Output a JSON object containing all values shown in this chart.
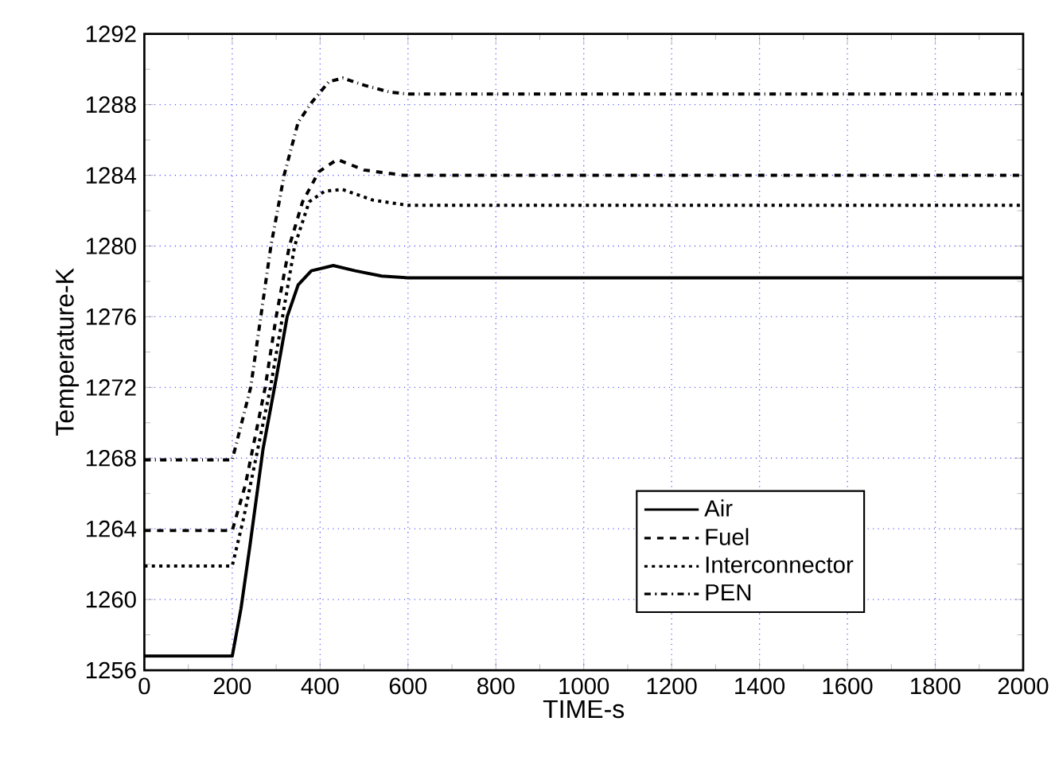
{
  "chart_data": {
    "type": "line",
    "xlabel": "TIME-s",
    "ylabel": "Temperature-K",
    "xlim": [
      0,
      2000
    ],
    "ylim": [
      1256,
      1292
    ],
    "xticks": [
      0,
      200,
      400,
      600,
      800,
      1000,
      1200,
      1400,
      1600,
      1800,
      2000
    ],
    "yticks": [
      1256,
      1260,
      1264,
      1268,
      1272,
      1276,
      1280,
      1284,
      1288,
      1292
    ],
    "grid": true,
    "legend": "bottom right",
    "series": [
      {
        "name": "Air",
        "color": "#000000",
        "line_style": "solid",
        "x": [
          0,
          200,
          220,
          240,
          270,
          300,
          325,
          350,
          380,
          430,
          480,
          540,
          600,
          2000
        ],
        "values": [
          1256.8,
          1256.8,
          1259.5,
          1263,
          1268.5,
          1272.5,
          1276,
          1277.8,
          1278.6,
          1278.9,
          1278.6,
          1278.3,
          1278.2,
          1278.2
        ]
      },
      {
        "name": "Fuel",
        "color": "#000000",
        "line_style": "dashed",
        "x": [
          0,
          200,
          230,
          275,
          300,
          330,
          360,
          397,
          439,
          500,
          590,
          2000
        ],
        "values": [
          1263.9,
          1263.9,
          1266.5,
          1272,
          1276,
          1280,
          1282.5,
          1284.2,
          1284.9,
          1284.3,
          1284,
          1284
        ]
      },
      {
        "name": "Interconnector",
        "color": "#000000",
        "line_style": "dotted",
        "x": [
          0,
          200,
          225,
          287,
          342,
          375,
          410,
          451,
          520,
          600,
          2000
        ],
        "values": [
          1261.9,
          1261.9,
          1264.5,
          1272,
          1280,
          1282.5,
          1283.1,
          1283.2,
          1282.6,
          1282.3,
          1282.3
        ]
      },
      {
        "name": "PEN",
        "color": "#000000",
        "line_style": "dashdot",
        "x": [
          0,
          200,
          242,
          288,
          318,
          350,
          380,
          420,
          452,
          500,
          560,
          600,
          2000
        ],
        "values": [
          1267.9,
          1267.9,
          1272,
          1280,
          1284,
          1287,
          1288.1,
          1289.3,
          1289.5,
          1289.1,
          1288.7,
          1288.6,
          1288.6
        ]
      }
    ]
  }
}
